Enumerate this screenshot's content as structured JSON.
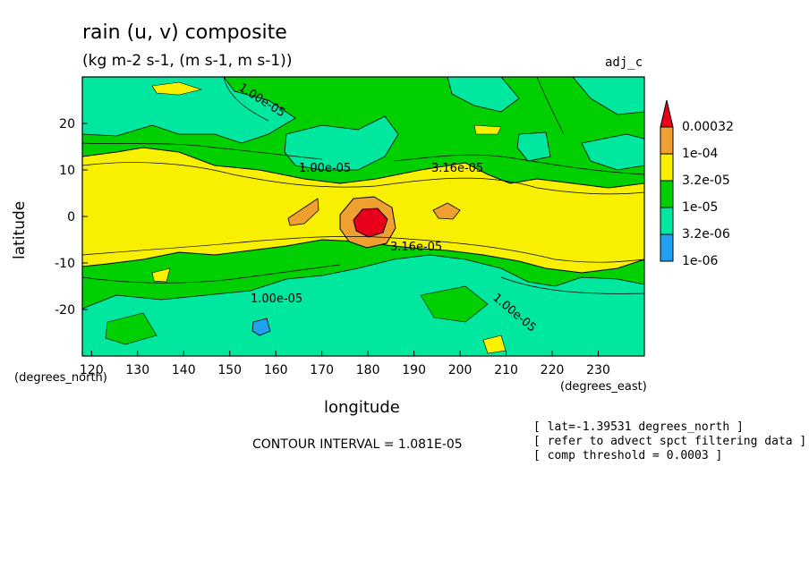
{
  "header": {
    "title": "rain (u, v) composite",
    "subtitle": "(kg m-2 s-1, (m s-1, m s-1))",
    "dataset": "adj_c"
  },
  "axes": {
    "xlabel": "longitude",
    "ylabel": "latitude",
    "x_units": "(degrees_east)",
    "y_units": "(degrees_north)"
  },
  "footer": {
    "contour_interval": "CONTOUR INTERVAL = 1.081E-05",
    "notes": [
      "[ lat=-1.39531 degrees_north ]",
      "[ refer to advect spct filtering data ]",
      "[ comp threshold = 0.0003 ]"
    ]
  },
  "legend": {
    "labels": [
      "0.00032",
      "1e-04",
      "3.2e-05",
      "1e-05",
      "3.2e-06",
      "1e-06"
    ],
    "colors": [
      "#e8001a",
      "#f0a030",
      "#f8f000",
      "#00d000",
      "#00e8a0",
      "#20a0f0"
    ]
  },
  "chart_data": {
    "type": "contour",
    "title": "rain (u, v) composite",
    "subtitle": "(kg m-2 s-1, (m s-1, m s-1))",
    "xlabel": "longitude",
    "ylabel": "latitude",
    "xlim": [
      118,
      240
    ],
    "ylim": [
      -30,
      30
    ],
    "x_ticks": [
      120,
      130,
      140,
      150,
      160,
      170,
      180,
      190,
      200,
      210,
      220,
      230
    ],
    "y_ticks": [
      -20,
      -10,
      0,
      10,
      20
    ],
    "contour_labels": [
      "1.00e-05",
      "1.00e-05",
      "3.16e-05",
      "3.16e-05",
      "1.00e-05",
      "1.00e-05"
    ],
    "levels": [
      1e-06,
      3.2e-06,
      1e-05,
      3.2e-05,
      0.0001,
      0.00032
    ],
    "contour_interval": "1.081E-05",
    "max_location": {
      "lon": 180,
      "lat": -1
    }
  }
}
